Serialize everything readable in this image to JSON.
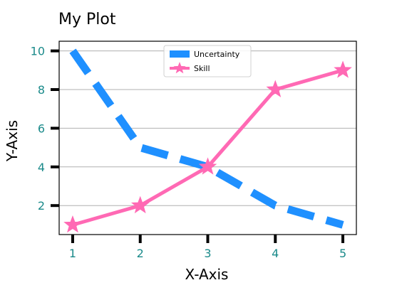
{
  "chart_data": {
    "type": "line",
    "title": "My Plot",
    "xlabel": "X-Axis",
    "ylabel": "Y-Axis",
    "x": [
      1,
      2,
      3,
      4,
      5
    ],
    "xlim": [
      0.8,
      5.2
    ],
    "ylim": [
      0.5,
      10.5
    ],
    "xticks": [
      "1",
      "2",
      "3",
      "4",
      "5"
    ],
    "yticks": [
      "2",
      "4",
      "6",
      "8",
      "10"
    ],
    "grid": "horizontal",
    "legend_position": "upper-center",
    "series": [
      {
        "name": "Uncertainty",
        "values": [
          10,
          5,
          4,
          2,
          1
        ],
        "color": "#1f90ff",
        "style": "dashed"
      },
      {
        "name": "Skill",
        "values": [
          1,
          2,
          4,
          8,
          9
        ],
        "color": "#ff69b4",
        "style": "solid",
        "marker": "star"
      }
    ],
    "colors": {
      "tick_labels": "#1a8a8a",
      "grid": "#b0b0b0"
    }
  }
}
